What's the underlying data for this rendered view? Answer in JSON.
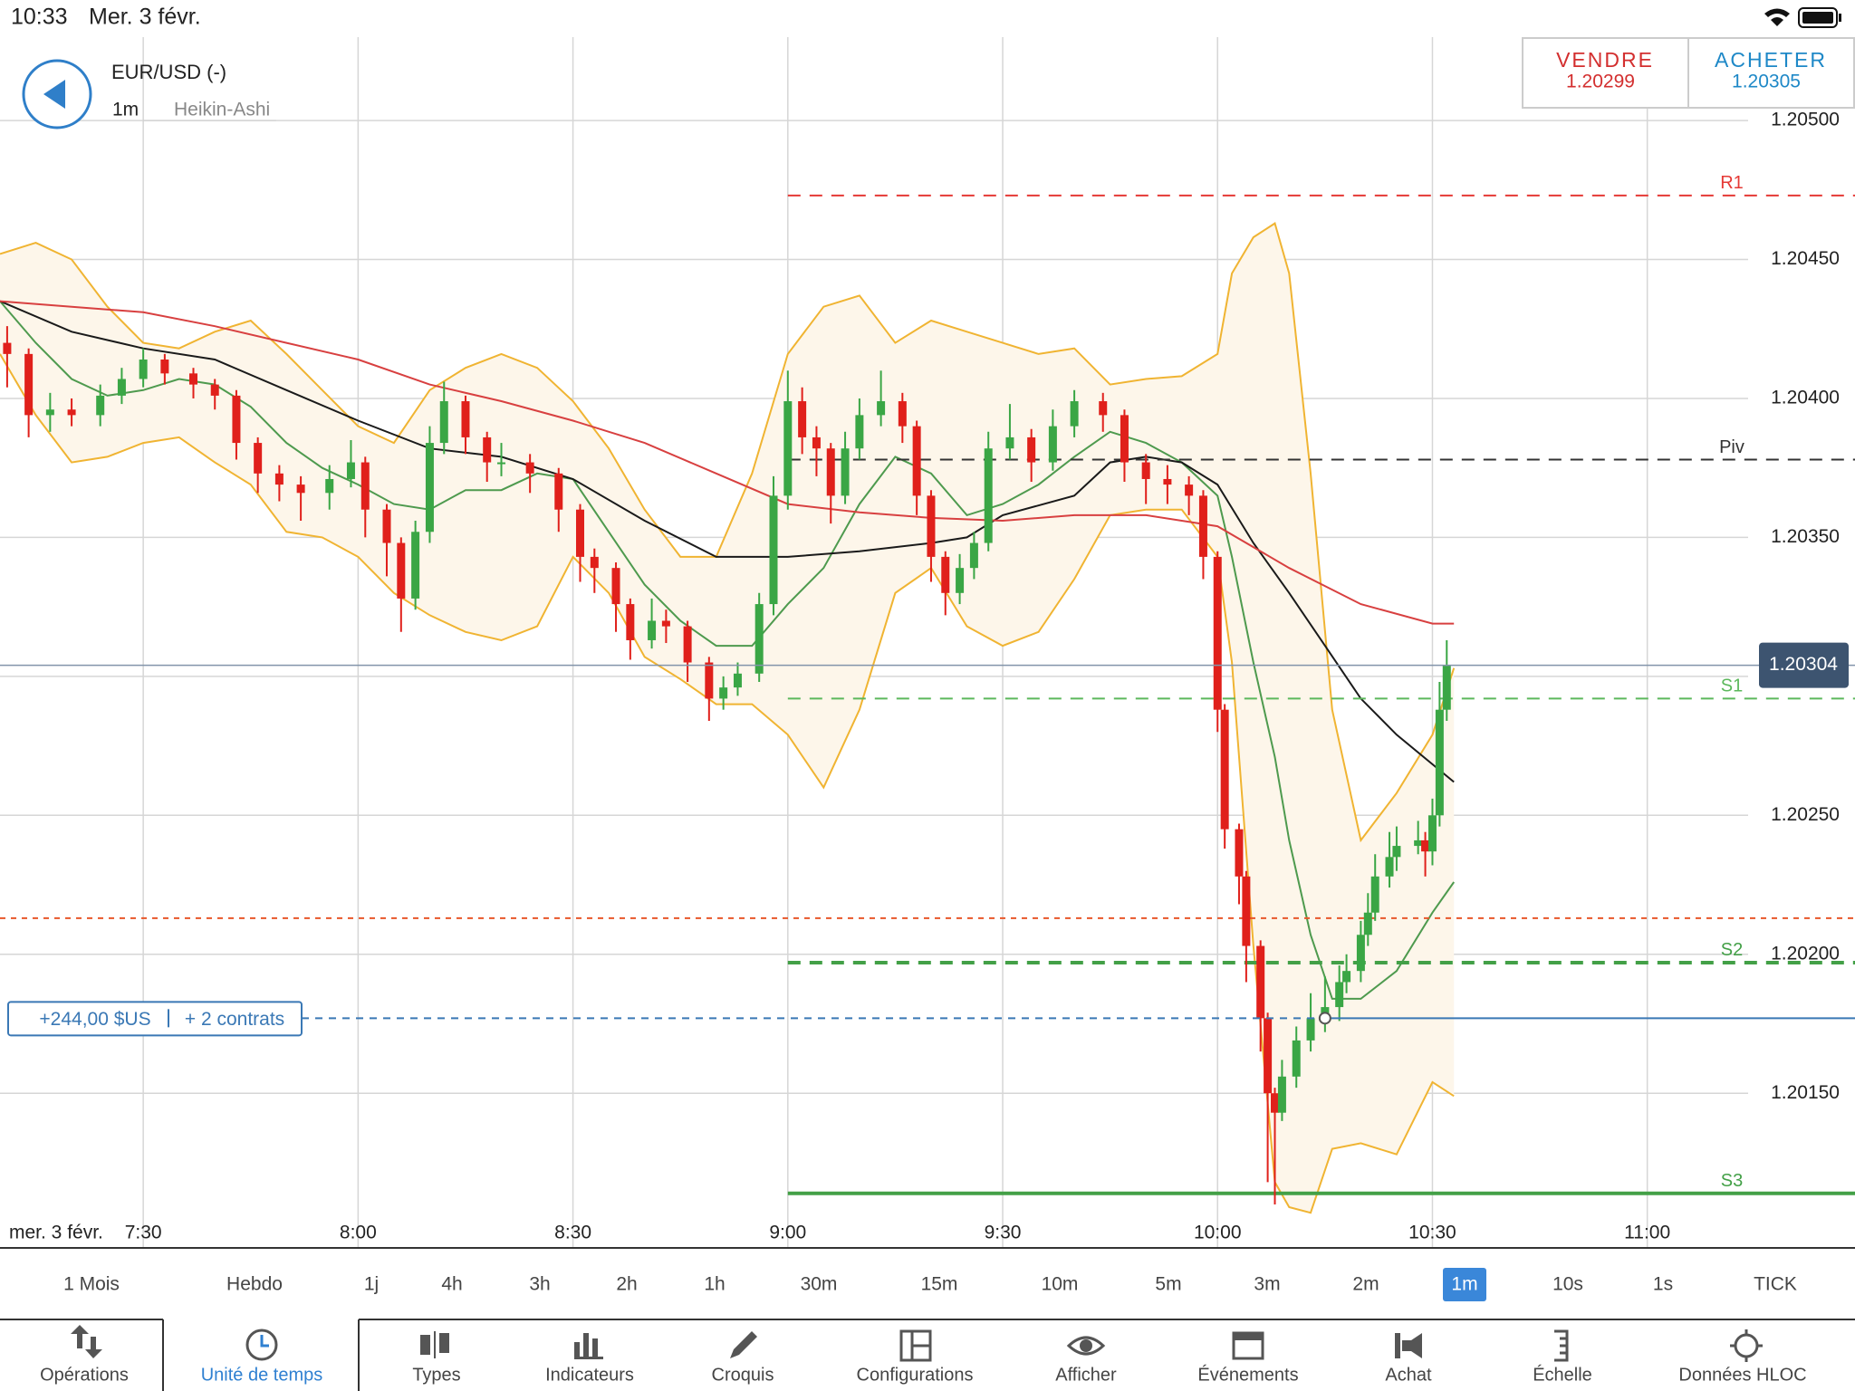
{
  "status_bar": {
    "time": "10:33",
    "date": "Mer. 3 févr."
  },
  "header": {
    "instrument": "EUR/USD (-)",
    "interval": "1m",
    "chart_type": "Heikin-Ashi",
    "sell": {
      "label": "VENDRE",
      "price": "1.20299",
      "color": "#d32f2f"
    },
    "buy": {
      "label": "ACHETER",
      "price": "1.20305",
      "color": "#1e88c7"
    }
  },
  "chart_data": {
    "type": "candlestick",
    "xlim": [
      "7:10",
      "11:29"
    ],
    "ylim": [
      1.20095,
      1.2053
    ],
    "xticks": [
      "7:30",
      "8:00",
      "8:30",
      "9:00",
      "9:30",
      "10:00",
      "10:30",
      "11:00"
    ],
    "date_label": "mer. 3 févr.",
    "yticks": [
      {
        "value": 1.2015,
        "label": "1.20150"
      },
      {
        "value": 1.202,
        "label": "1.20200"
      },
      {
        "value": 1.2025,
        "label": "1.20250"
      },
      {
        "value": 1.203,
        "label": "1.20300"
      },
      {
        "value": 1.2035,
        "label": "1.20350"
      },
      {
        "value": 1.204,
        "label": "1.20400"
      },
      {
        "value": 1.2045,
        "label": "1.20450"
      },
      {
        "value": 1.205,
        "label": "1.20500"
      }
    ],
    "grid": true,
    "up_color": "#3aa645",
    "down_color": "#e0201b",
    "x": [
      "7:11",
      "7:14",
      "7:17",
      "7:20",
      "7:24",
      "7:27",
      "7:30",
      "7:33",
      "7:37",
      "7:40",
      "7:43",
      "7:46",
      "7:49",
      "7:52",
      "7:56",
      "7:59",
      "8:01",
      "8:04",
      "8:06",
      "8:08",
      "8:10",
      "8:12",
      "8:15",
      "8:18",
      "8:20",
      "8:24",
      "8:28",
      "8:31",
      "8:33",
      "8:36",
      "8:38",
      "8:41",
      "8:43",
      "8:46",
      "8:49",
      "8:51",
      "8:53",
      "8:56",
      "8:58",
      "9:00",
      "9:02",
      "9:04",
      "9:06",
      "9:08",
      "9:10",
      "9:13",
      "9:16",
      "9:18",
      "9:20",
      "9:22",
      "9:24",
      "9:26",
      "9:28",
      "9:31",
      "9:34",
      "9:37",
      "9:40",
      "9:44",
      "9:47",
      "9:50",
      "9:53",
      "9:56",
      "9:58",
      "10:00",
      "10:01",
      "10:03",
      "10:04",
      "10:06",
      "10:07",
      "10:08",
      "10:09",
      "10:11",
      "10:13",
      "10:15",
      "10:17",
      "10:18",
      "10:20",
      "10:21",
      "10:22",
      "10:24",
      "10:25",
      "10:28",
      "10:29",
      "10:30",
      "10:31",
      "10:32"
    ],
    "open": [
      1.2042,
      1.20416,
      1.20394,
      1.20396,
      1.20394,
      1.20401,
      1.20407,
      1.20414,
      1.20409,
      1.20405,
      1.20401,
      1.20384,
      1.20373,
      1.20369,
      1.20366,
      1.20371,
      1.20377,
      1.2036,
      1.20348,
      1.20328,
      1.20352,
      1.20384,
      1.20399,
      1.20386,
      1.20377,
      1.20377,
      1.20373,
      1.2036,
      1.20343,
      1.20339,
      1.20326,
      1.20313,
      1.2032,
      1.20318,
      1.20305,
      1.20292,
      1.20296,
      1.20301,
      1.20326,
      1.20365,
      1.20399,
      1.20386,
      1.20382,
      1.20365,
      1.20382,
      1.20394,
      1.20399,
      1.2039,
      1.20365,
      1.20343,
      1.2033,
      1.20339,
      1.20348,
      1.20382,
      1.20386,
      1.20377,
      1.2039,
      1.20399,
      1.20394,
      1.20377,
      1.20371,
      1.20369,
      1.20365,
      1.20343,
      1.20288,
      1.20245,
      1.20228,
      1.20203,
      1.20177,
      1.2015,
      1.20143,
      1.20156,
      1.20169,
      1.20177,
      1.20181,
      1.2019,
      1.20194,
      1.20207,
      1.20215,
      1.20228,
      1.20235,
      1.20239,
      1.20241,
      1.20237,
      1.2025,
      1.20288
    ],
    "high": [
      1.20426,
      1.20418,
      1.20402,
      1.204,
      1.20405,
      1.20411,
      1.20418,
      1.20416,
      1.20411,
      1.20407,
      1.20403,
      1.20386,
      1.20376,
      1.20372,
      1.20376,
      1.20385,
      1.20379,
      1.20362,
      1.2035,
      1.20356,
      1.2039,
      1.20406,
      1.20401,
      1.20388,
      1.20384,
      1.2038,
      1.20375,
      1.20362,
      1.20346,
      1.20341,
      1.20328,
      1.20328,
      1.20324,
      1.2032,
      1.20307,
      1.203,
      1.20305,
      1.2033,
      1.20372,
      1.2041,
      1.20404,
      1.2039,
      1.20384,
      1.20388,
      1.204,
      1.2041,
      1.20402,
      1.20392,
      1.20367,
      1.20345,
      1.20344,
      1.20352,
      1.20388,
      1.20398,
      1.20389,
      1.20396,
      1.20403,
      1.20402,
      1.20396,
      1.2038,
      1.20376,
      1.20372,
      1.20367,
      1.20345,
      1.2029,
      1.20247,
      1.2023,
      1.20205,
      1.20179,
      1.20152,
      1.20162,
      1.20174,
      1.20186,
      1.20192,
      1.20196,
      1.202,
      1.20212,
      1.20222,
      1.20236,
      1.20244,
      1.20246,
      1.20248,
      1.20244,
      1.20256,
      1.20298,
      1.20313
    ],
    "low": [
      1.20404,
      1.20386,
      1.20388,
      1.2039,
      1.2039,
      1.20398,
      1.20404,
      1.20405,
      1.204,
      1.20396,
      1.20378,
      1.20366,
      1.20363,
      1.20356,
      1.2036,
      1.20368,
      1.2035,
      1.20336,
      1.20316,
      1.20324,
      1.20348,
      1.2038,
      1.2038,
      1.2037,
      1.20372,
      1.20366,
      1.20352,
      1.20334,
      1.2033,
      1.20316,
      1.20306,
      1.2031,
      1.20312,
      1.20298,
      1.20284,
      1.20288,
      1.20293,
      1.20298,
      1.20322,
      1.2036,
      1.2038,
      1.20372,
      1.20355,
      1.20362,
      1.20378,
      1.2039,
      1.20384,
      1.20358,
      1.20334,
      1.20322,
      1.20326,
      1.20335,
      1.20345,
      1.20378,
      1.2037,
      1.20374,
      1.20386,
      1.20388,
      1.2037,
      1.20362,
      1.20362,
      1.20358,
      1.20335,
      1.2028,
      1.20238,
      1.20218,
      1.2019,
      1.20165,
      1.20118,
      1.2011,
      1.2014,
      1.20152,
      1.20165,
      1.20172,
      1.20176,
      1.20186,
      1.2019,
      1.20203,
      1.20212,
      1.20224,
      1.2023,
      1.20236,
      1.20228,
      1.20232,
      1.20246,
      1.20284
    ],
    "close": [
      1.20416,
      1.20394,
      1.20396,
      1.20394,
      1.20401,
      1.20407,
      1.20414,
      1.20409,
      1.20405,
      1.20401,
      1.20384,
      1.20373,
      1.20369,
      1.20366,
      1.20371,
      1.20377,
      1.2036,
      1.20348,
      1.20328,
      1.20352,
      1.20384,
      1.20399,
      1.20386,
      1.20377,
      1.20377,
      1.20373,
      1.2036,
      1.20343,
      1.20339,
      1.20326,
      1.20313,
      1.2032,
      1.20318,
      1.20305,
      1.20292,
      1.20296,
      1.20301,
      1.20326,
      1.20365,
      1.20399,
      1.20386,
      1.20382,
      1.20365,
      1.20382,
      1.20394,
      1.20399,
      1.2039,
      1.20365,
      1.20343,
      1.2033,
      1.20339,
      1.20348,
      1.20382,
      1.20386,
      1.20377,
      1.2039,
      1.20399,
      1.20394,
      1.20377,
      1.20371,
      1.20369,
      1.20365,
      1.20343,
      1.20288,
      1.20245,
      1.20228,
      1.20203,
      1.20177,
      1.2015,
      1.20143,
      1.20156,
      1.20169,
      1.20177,
      1.20181,
      1.2019,
      1.20194,
      1.20207,
      1.20215,
      1.20228,
      1.20235,
      1.20239,
      1.20241,
      1.20237,
      1.2025,
      1.20288,
      1.20304
    ],
    "bands": {
      "color": "#f0b432",
      "middle_color": "#4e9a4e",
      "fill": "#fdf6ea",
      "x": [
        "7:10",
        "7:15",
        "7:20",
        "7:25",
        "7:30",
        "7:35",
        "7:40",
        "7:45",
        "7:50",
        "7:55",
        "8:00",
        "8:05",
        "8:10",
        "8:15",
        "8:20",
        "8:25",
        "8:30",
        "8:35",
        "8:40",
        "8:45",
        "8:50",
        "8:55",
        "9:00",
        "9:05",
        "9:10",
        "9:15",
        "9:20",
        "9:25",
        "9:30",
        "9:35",
        "9:40",
        "9:45",
        "9:50",
        "9:55",
        "10:00",
        "10:02",
        "10:05",
        "10:08",
        "10:10",
        "10:13",
        "10:16",
        "10:20",
        "10:25",
        "10:30",
        "10:33"
      ],
      "upper": [
        1.20452,
        1.20456,
        1.2045,
        1.20433,
        1.2042,
        1.20418,
        1.20424,
        1.20428,
        1.20416,
        1.20403,
        1.2039,
        1.20384,
        1.20403,
        1.20411,
        1.20416,
        1.20411,
        1.20399,
        1.20382,
        1.2036,
        1.20343,
        1.20343,
        1.20373,
        1.20416,
        1.20433,
        1.20437,
        1.2042,
        1.20428,
        1.20424,
        1.2042,
        1.20416,
        1.20418,
        1.20405,
        1.20407,
        1.20408,
        1.20416,
        1.20445,
        1.20458,
        1.20463,
        1.20445,
        1.20373,
        1.20288,
        1.20241,
        1.20258,
        1.20279,
        1.20303
      ],
      "lower": [
        1.20416,
        1.20394,
        1.20377,
        1.20379,
        1.20384,
        1.20386,
        1.20377,
        1.20369,
        1.20352,
        1.2035,
        1.20343,
        1.2033,
        1.20322,
        1.20316,
        1.20313,
        1.20318,
        1.20343,
        1.2033,
        1.20307,
        1.20299,
        1.2029,
        1.2029,
        1.20279,
        1.2026,
        1.20288,
        1.2033,
        1.20339,
        1.20318,
        1.20311,
        1.20316,
        1.20335,
        1.20358,
        1.2036,
        1.2036,
        1.20343,
        1.20305,
        1.20203,
        1.20118,
        1.20109,
        1.20107,
        1.2013,
        1.20132,
        1.20128,
        1.20154,
        1.20149
      ],
      "middle": [
        1.20435,
        1.2042,
        1.20407,
        1.20401,
        1.20403,
        1.20407,
        1.20405,
        1.20397,
        1.20384,
        1.20375,
        1.20369,
        1.20362,
        1.2036,
        1.20367,
        1.20367,
        1.20373,
        1.20371,
        1.20352,
        1.20333,
        1.2032,
        1.20311,
        1.20311,
        1.20326,
        1.20339,
        1.20362,
        1.20379,
        1.20373,
        1.20358,
        1.20362,
        1.20369,
        1.20379,
        1.20388,
        1.20384,
        1.20377,
        1.20365,
        1.20343,
        1.20305,
        1.20271,
        1.20241,
        1.20207,
        1.20184,
        1.20184,
        1.20194,
        1.20215,
        1.20226
      ]
    },
    "moving_averages": [
      {
        "color": "#1a1a1a",
        "x": [
          "7:10",
          "7:20",
          "7:30",
          "7:40",
          "7:50",
          "8:00",
          "8:10",
          "8:20",
          "8:30",
          "8:40",
          "8:50",
          "9:00",
          "9:10",
          "9:20",
          "9:25",
          "9:30",
          "9:40",
          "9:45",
          "9:50",
          "9:55",
          "10:00",
          "10:05",
          "10:10",
          "10:15",
          "10:20",
          "10:25",
          "10:33"
        ],
        "values": [
          1.20435,
          1.20424,
          1.20418,
          1.20414,
          1.20403,
          1.20392,
          1.20382,
          1.20379,
          1.20371,
          1.20356,
          1.20343,
          1.20343,
          1.20345,
          1.20348,
          1.2035,
          1.20358,
          1.20365,
          1.20377,
          1.20379,
          1.20377,
          1.20369,
          1.20348,
          1.2033,
          1.20311,
          1.20292,
          1.20279,
          1.20262
        ]
      },
      {
        "color": "#d84040",
        "x": [
          "7:10",
          "7:20",
          "7:30",
          "7:40",
          "7:50",
          "8:00",
          "8:10",
          "8:20",
          "8:30",
          "8:40",
          "8:50",
          "9:00",
          "9:10",
          "9:20",
          "9:30",
          "9:40",
          "9:50",
          "10:00",
          "10:10",
          "10:20",
          "10:30",
          "10:33"
        ],
        "values": [
          1.20435,
          1.20433,
          1.20431,
          1.20426,
          1.2042,
          1.20414,
          1.20405,
          1.20399,
          1.20392,
          1.20384,
          1.20373,
          1.20362,
          1.20359,
          1.20357,
          1.20356,
          1.20358,
          1.20358,
          1.20354,
          1.20339,
          1.20326,
          1.20319,
          1.20319
        ]
      }
    ],
    "levels": [
      {
        "label": "R1",
        "value": 1.20473,
        "color": "#e53935",
        "style": "dashed",
        "from": "9:00"
      },
      {
        "label": "Piv",
        "value": 1.20378,
        "color": "#333333",
        "style": "dashed",
        "from": "9:00"
      },
      {
        "label": "S1",
        "value": 1.20292,
        "color": "#5cb85c",
        "style": "dashed",
        "from": "9:00"
      },
      {
        "label": "S2",
        "value": 1.20197,
        "color": "#43a047",
        "style": "dashed-bold",
        "from": "9:00"
      },
      {
        "label": "S3",
        "value": 1.20114,
        "color": "#43a047",
        "style": "solid",
        "from": "9:00"
      },
      {
        "value": 1.20213,
        "color": "#e8572a",
        "style": "dotted"
      }
    ],
    "current_price": 1.20304,
    "current_color": "#3d5470",
    "position": {
      "value": 1.20177,
      "x": "10:15",
      "pnl": "+244,00 $US",
      "quantity": "+ 2 contrats",
      "color": "#3a78b5"
    }
  },
  "timeframes": [
    {
      "label": "1 Mois"
    },
    {
      "label": "Hebdo"
    },
    {
      "label": "1j"
    },
    {
      "label": "4h"
    },
    {
      "label": "3h"
    },
    {
      "label": "2h"
    },
    {
      "label": "1h"
    },
    {
      "label": "30m"
    },
    {
      "label": "15m"
    },
    {
      "label": "10m"
    },
    {
      "label": "5m"
    },
    {
      "label": "3m"
    },
    {
      "label": "2m"
    },
    {
      "label": "1m",
      "selected": true
    },
    {
      "label": "10s"
    },
    {
      "label": "1s"
    },
    {
      "label": "TICK"
    }
  ],
  "toolbar": [
    {
      "label": "Opérations"
    },
    {
      "label": "Unité de temps",
      "selected": true
    },
    {
      "label": "Types"
    },
    {
      "label": "Indicateurs"
    },
    {
      "label": "Croquis"
    },
    {
      "label": "Configurations"
    },
    {
      "label": "Afficher"
    },
    {
      "label": "Événements"
    },
    {
      "label": "Achat"
    },
    {
      "label": "Échelle"
    },
    {
      "label": "Données HLOC"
    }
  ]
}
